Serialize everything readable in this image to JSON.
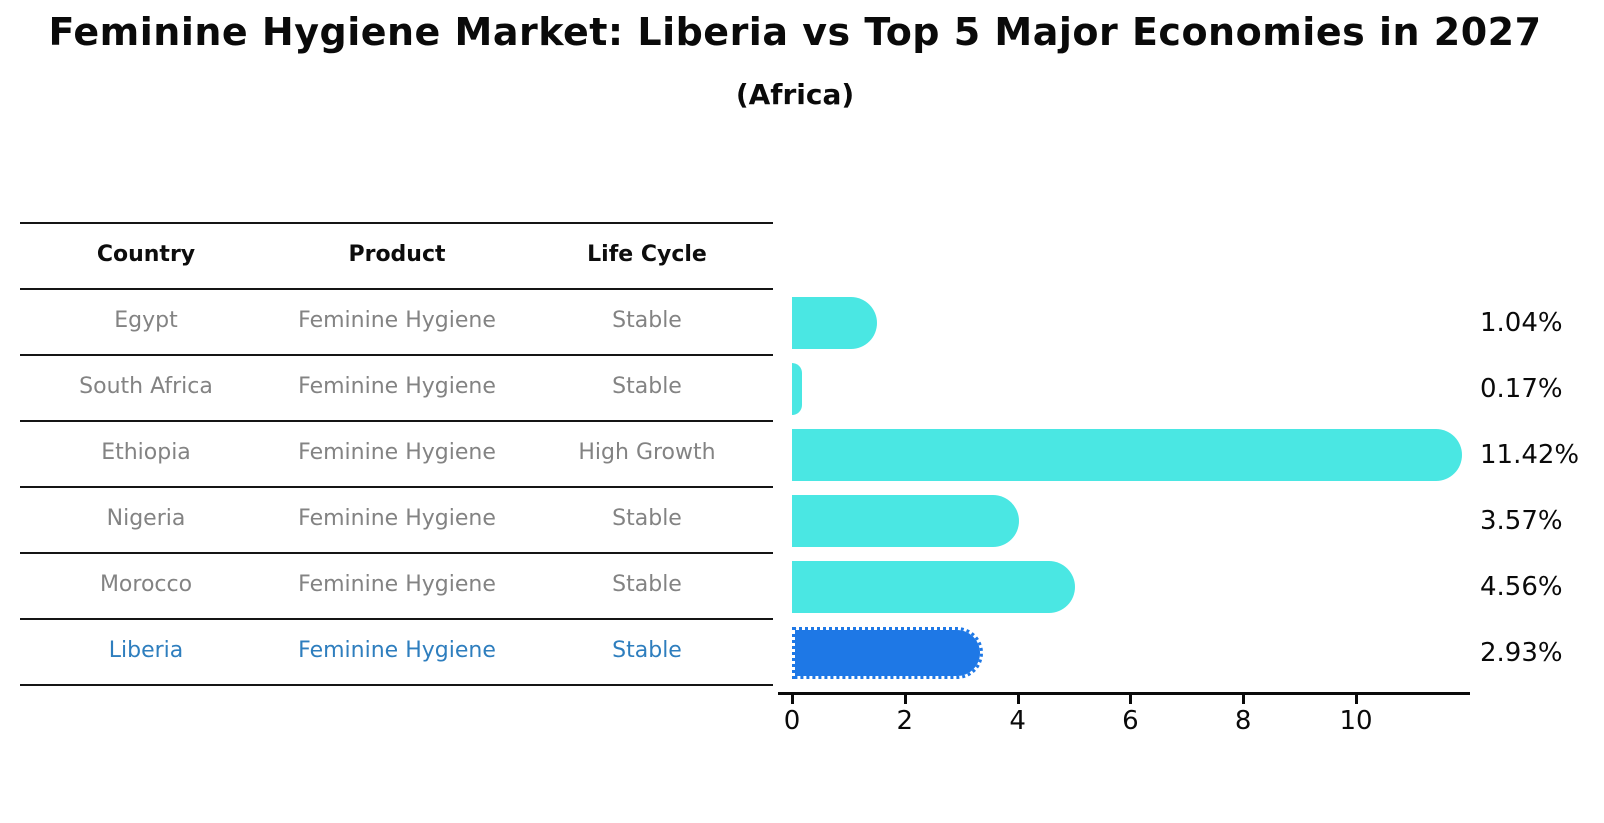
{
  "title": "Feminine Hygiene Market: Liberia vs Top 5 Major Economies in 2027",
  "subtitle": "(Africa)",
  "colors": {
    "bar_cyan": "#4ae7e3",
    "bar_blue": "#1e78e6",
    "highlight_text_blue": "#2e7ebe",
    "table_text_gray": "#838383",
    "text_black": "#0a0a0a"
  },
  "table": {
    "headers": [
      "Country",
      "Product",
      "Life Cycle"
    ],
    "rows": [
      {
        "country": "Egypt",
        "product": "Feminine Hygiene",
        "life_cycle": "Stable",
        "highlight": false
      },
      {
        "country": "South Africa",
        "product": "Feminine Hygiene",
        "life_cycle": "Stable",
        "highlight": false
      },
      {
        "country": "Ethiopia",
        "product": "Feminine Hygiene",
        "life_cycle": "High Growth",
        "highlight": false
      },
      {
        "country": "Nigeria",
        "product": "Feminine Hygiene",
        "life_cycle": "Stable",
        "highlight": false
      },
      {
        "country": "Morocco",
        "product": "Feminine Hygiene",
        "life_cycle": "Stable",
        "highlight": false
      },
      {
        "country": "Liberia",
        "product": "Feminine Hygiene",
        "life_cycle": "Stable",
        "highlight": true
      }
    ]
  },
  "chart_data": {
    "type": "bar",
    "orientation": "horizontal",
    "title": "Feminine Hygiene Market: Liberia vs Top 5 Major Economies in 2027",
    "subtitle": "(Africa)",
    "categories": [
      "Egypt",
      "South Africa",
      "Ethiopia",
      "Nigeria",
      "Morocco",
      "Liberia"
    ],
    "values": [
      1.04,
      0.17,
      11.42,
      3.57,
      4.56,
      2.93
    ],
    "value_labels": [
      "1.04%",
      "0.17%",
      "11.42%",
      "3.57%",
      "4.56%",
      "2.93%"
    ],
    "x_ticks": [
      0,
      2,
      4,
      6,
      8,
      10
    ],
    "xlim": [
      0,
      12
    ],
    "xlabel": "",
    "ylabel": "",
    "grid": false,
    "legend": false,
    "bar_color": "#4ae7e3",
    "highlight_category": "Liberia",
    "highlight_bar_color": "#1e78e6",
    "highlight_bar_style": "dotted-outline",
    "value_label_position": "right-of-plot"
  }
}
